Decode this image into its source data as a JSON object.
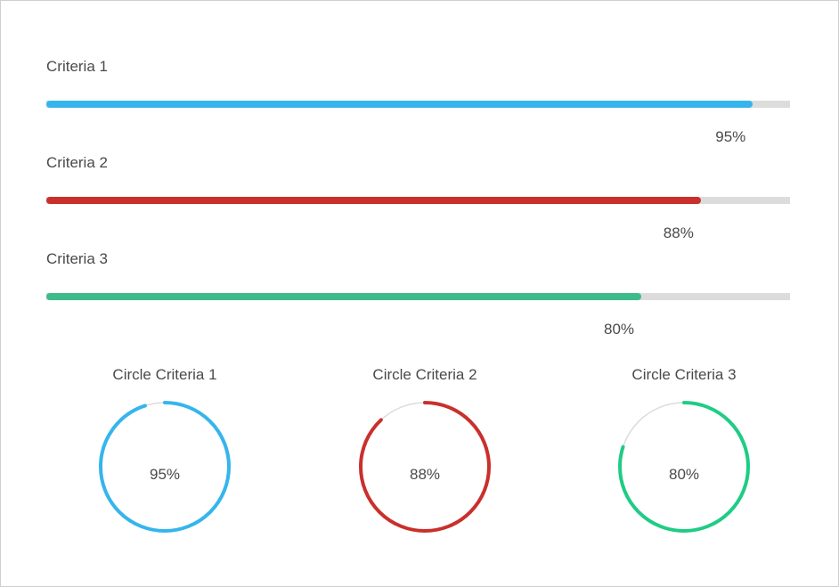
{
  "bars": [
    {
      "label": "Criteria 1",
      "value_text": "95%",
      "percent": 95,
      "color": "#35b5ec"
    },
    {
      "label": "Criteria 2",
      "value_text": "88%",
      "percent": 88,
      "color": "#c9302c"
    },
    {
      "label": "Criteria 3",
      "value_text": "80%",
      "percent": 80,
      "color": "#3dbb8b"
    }
  ],
  "circles": [
    {
      "title": "Circle Criteria 1",
      "value_text": "95%",
      "percent": 95,
      "color": "#35b5ec"
    },
    {
      "title": "Circle Criteria 2",
      "value_text": "88%",
      "percent": 88,
      "color": "#c9302c"
    },
    {
      "title": "Circle Criteria 3",
      "value_text": "80%",
      "percent": 80,
      "color": "#1fcc85"
    }
  ],
  "track_color": "#dcdcdc"
}
